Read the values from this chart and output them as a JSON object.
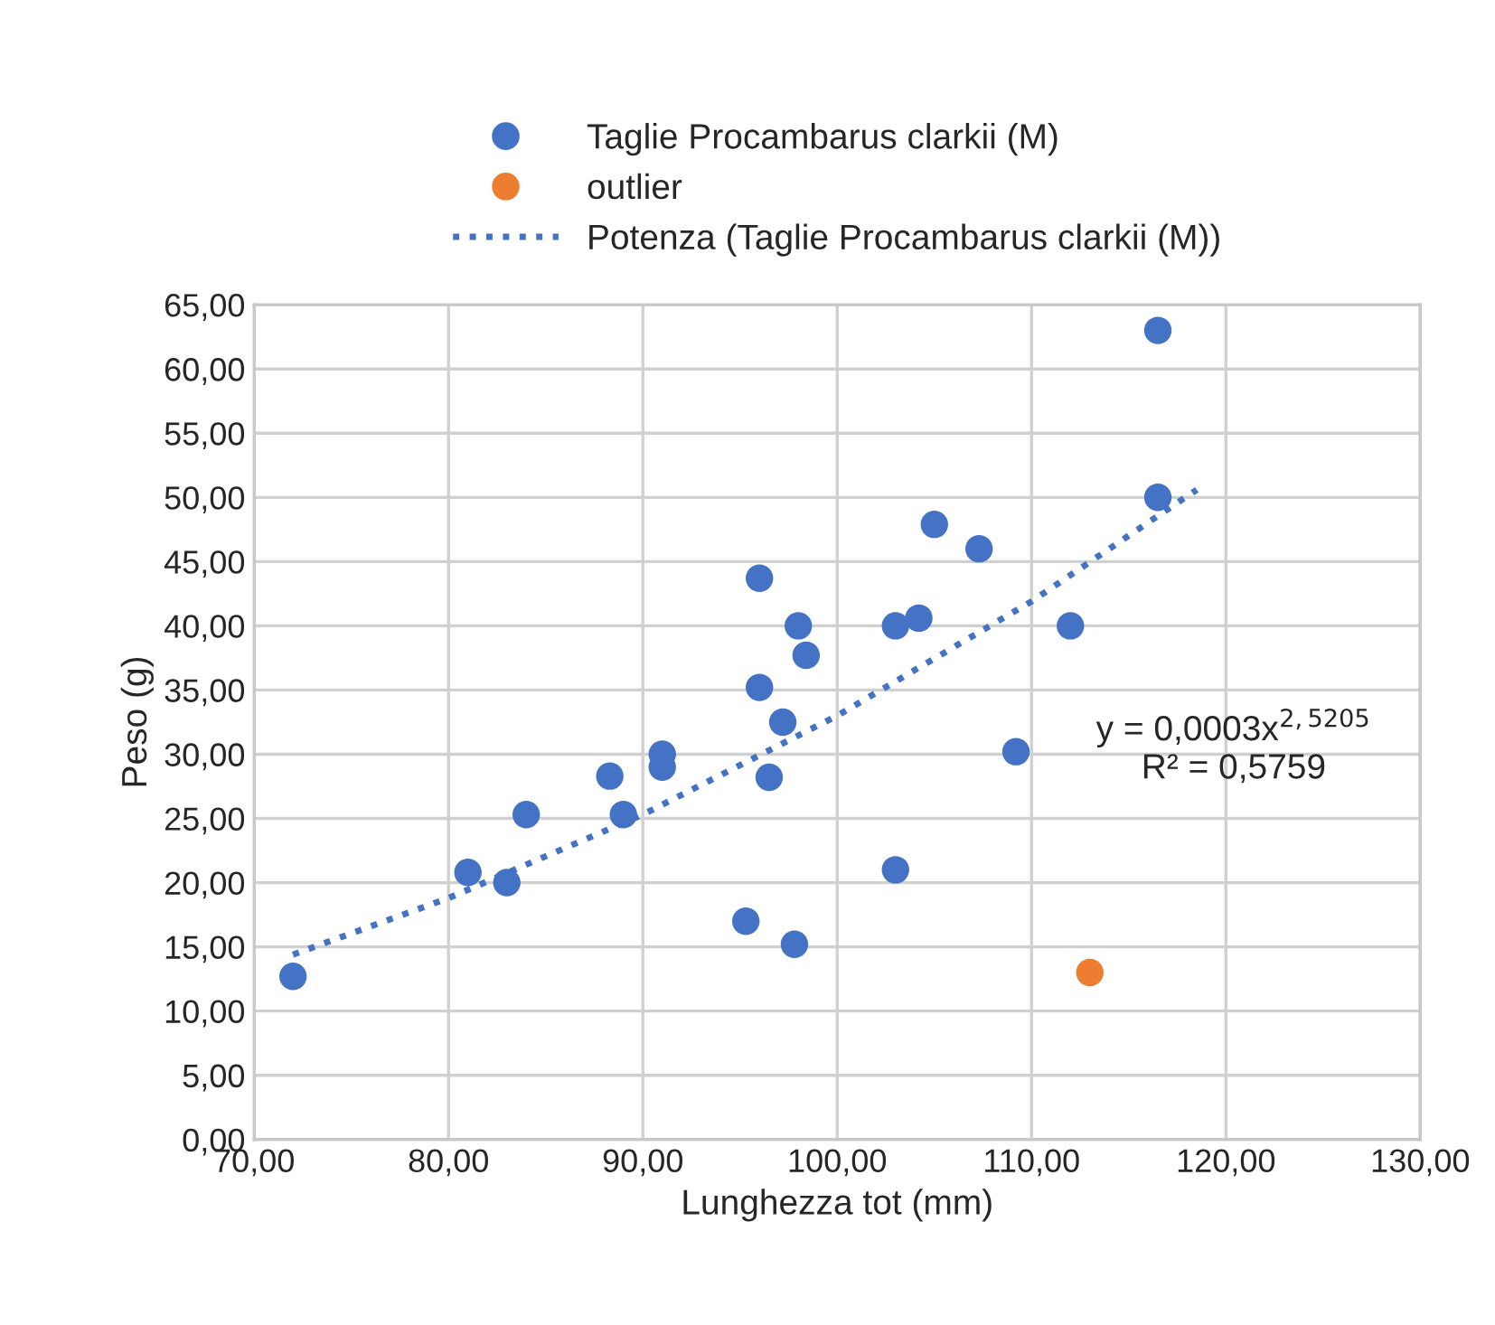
{
  "chart_data": {
    "type": "scatter",
    "xlabel": "Lunghezza tot (mm)",
    "ylabel": "Peso (g)",
    "series": [
      {
        "name": "Taglie Procambarus clarkii (M)",
        "color": "#4472c4",
        "x": [
          72,
          81,
          83,
          84,
          88.3,
          89,
          91,
          91,
          95.3,
          96,
          96,
          96.5,
          97.2,
          97.8,
          98,
          98.4,
          103,
          103,
          104.2,
          105,
          107.3,
          109.2,
          112,
          116.5,
          116.5
        ],
        "values": [
          12.7,
          20.8,
          20,
          25.3,
          28.3,
          25.3,
          30,
          29,
          17,
          35.2,
          43.7,
          28.2,
          32.5,
          15.2,
          40,
          37.7,
          40,
          21,
          40.6,
          47.9,
          46,
          30.2,
          40,
          63,
          50
        ]
      },
      {
        "name": "outlier",
        "color": "#ed7d31",
        "x": [
          113
        ],
        "values": [
          13
        ]
      },
      {
        "name": "Potenza (Taglie Procambarus clarkii (M))",
        "type": "line",
        "line_style": "dotted",
        "marker": "none",
        "color": "#4472c4",
        "x": [
          72,
          80,
          90,
          100,
          110,
          118.5
        ],
        "values": [
          14.4,
          18.8,
          25.3,
          33.0,
          41.9,
          50.6
        ]
      }
    ],
    "marker": "circle",
    "annotations": [
      "y = 0,0003x$^{2,5205}$\nR² = 0,5759"
    ],
    "xlim": [
      70,
      130
    ],
    "xticks": [
      {
        "value": 70,
        "label": "70,00"
      },
      {
        "value": 80,
        "label": "80,00"
      },
      {
        "value": 90,
        "label": "90,00"
      },
      {
        "value": 100,
        "label": "100,00"
      },
      {
        "value": 110,
        "label": "110,00"
      },
      {
        "value": 120,
        "label": "120,00"
      },
      {
        "value": 130,
        "label": "130,00"
      }
    ],
    "ylim": [
      0,
      65
    ],
    "yticks": [
      {
        "value": 0,
        "label": "0,00"
      },
      {
        "value": 5,
        "label": "5,00"
      },
      {
        "value": 10,
        "label": "10,00"
      },
      {
        "value": 15,
        "label": "15,00"
      },
      {
        "value": 20,
        "label": "20,00"
      },
      {
        "value": 25,
        "label": "25,00"
      },
      {
        "value": 30,
        "label": "30,00"
      },
      {
        "value": 35,
        "label": "35,00"
      },
      {
        "value": 40,
        "label": "40,00"
      },
      {
        "value": 45,
        "label": "45,00"
      },
      {
        "value": 50,
        "label": "50,00"
      },
      {
        "value": 55,
        "label": "55,00"
      },
      {
        "value": 60,
        "label": "60,00"
      },
      {
        "value": 65,
        "label": "65,00"
      }
    ],
    "grid": true,
    "legend": "top"
  }
}
